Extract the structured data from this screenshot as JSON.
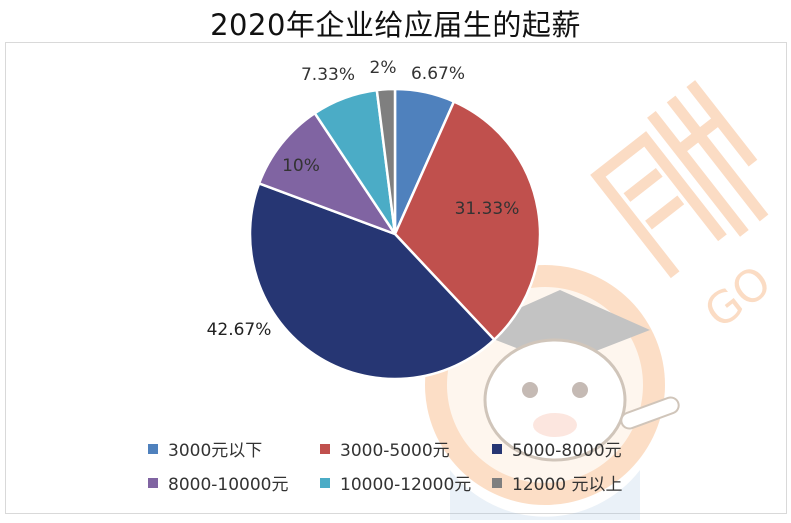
{
  "chart_data": {
    "type": "pie",
    "title": "2020年企业给应届生的起薪",
    "categories": [
      "3000元以下",
      "3000-5000元",
      "5000-8000元",
      "8000-10000元",
      "10000-12000元",
      "12000 元以上"
    ],
    "values": [
      6.67,
      31.33,
      42.67,
      10,
      7.33,
      2
    ],
    "value_labels": [
      "6.67%",
      "31.33%",
      "42.67%",
      "10%",
      "7.33%",
      "2%"
    ],
    "colors": [
      "#4f81bd",
      "#c0504d",
      "#263673",
      "#8064a2",
      "#4bacc6",
      "#7f7f7f"
    ],
    "start_angle_deg": 0,
    "direction": "clockwise",
    "legend_position": "bottom"
  }
}
